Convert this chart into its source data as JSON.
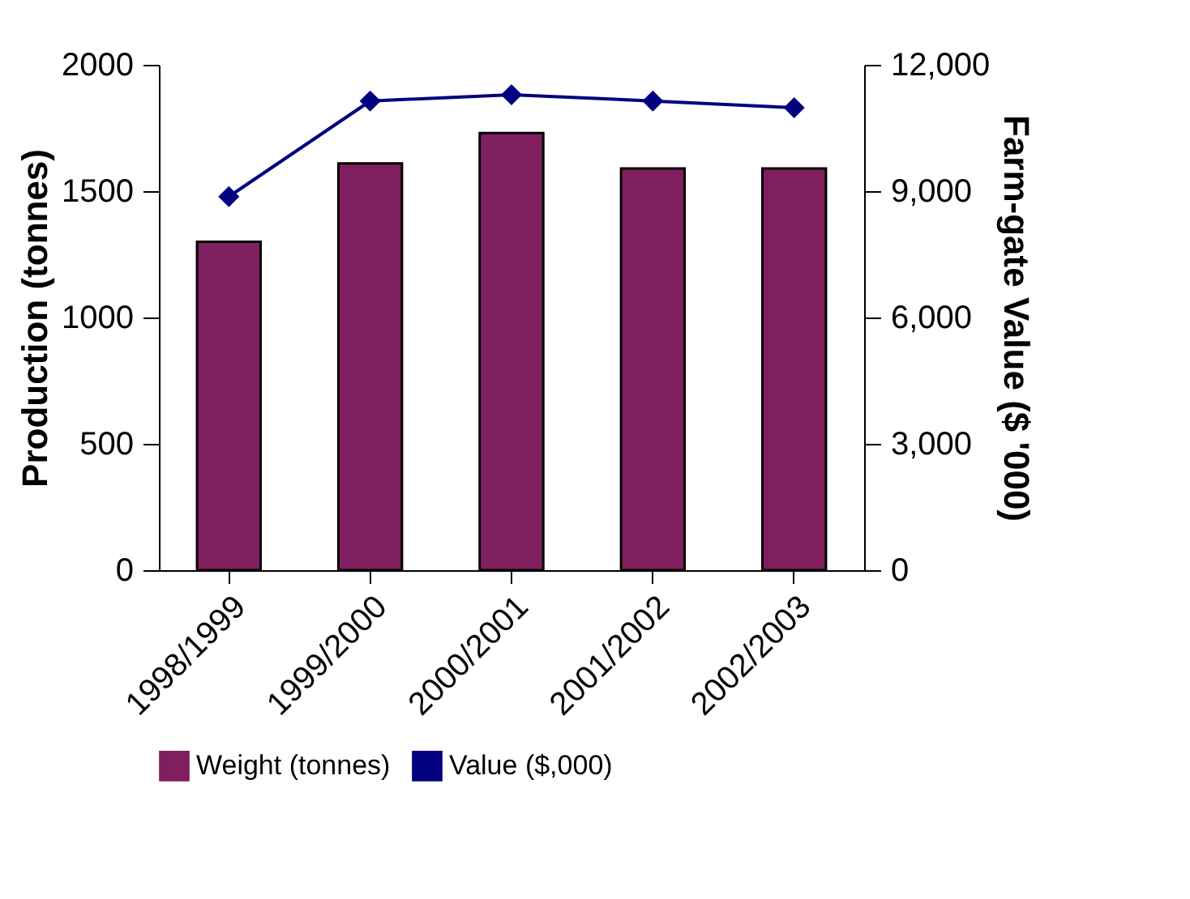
{
  "chart_data": {
    "type": "bar",
    "categories": [
      "1998/1999",
      "1999/2000",
      "2000/2001",
      "2001/2002",
      "2002/2003"
    ],
    "ylabel": "Production (tonnes)",
    "y2label": "Farm-gate Value ($ '000)",
    "series": [
      {
        "name": "Weight (tonnes)",
        "color": "#7f1f5f",
        "values": [
          1300,
          1610,
          1730,
          1590,
          1590
        ]
      },
      {
        "name": "Value ($,000)",
        "type": "line",
        "axis": "y2",
        "color": "#000080",
        "marker": "diamond",
        "values": [
          8870,
          11140,
          11290,
          11140,
          10980
        ]
      }
    ],
    "ylim": [
      0,
      2000
    ],
    "yticks": [
      0,
      500,
      1000,
      1500,
      2000
    ],
    "y2lim": [
      0,
      12000
    ],
    "y2ticks": [
      0,
      {
        "value": 3000,
        "label": "3,000"
      },
      {
        "value": 6000,
        "label": "6,000"
      },
      {
        "value": 9000,
        "label": "9,000"
      },
      {
        "value": 12000,
        "label": "12,000"
      }
    ],
    "grid": false,
    "legend": "bottom"
  }
}
